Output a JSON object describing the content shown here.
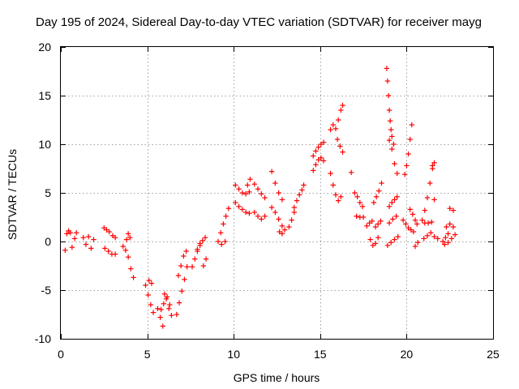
{
  "chart_data": {
    "type": "scatter",
    "title": "Day 195 of 2024, Sidereal Day-to-day VTEC variation (SDTVAR) for receiver mayg",
    "xlabel": "GPS time / hours",
    "ylabel": "SDTVAR / TECUs",
    "xlim": [
      0,
      25
    ],
    "ylim": [
      -10,
      20
    ],
    "x_ticks": [
      0,
      5,
      10,
      15,
      20,
      25
    ],
    "y_ticks": [
      -10,
      -5,
      0,
      5,
      10,
      15,
      20
    ],
    "x_tick_labels": [
      "0",
      "5",
      "10",
      "15",
      "20",
      "25"
    ],
    "y_tick_labels": [
      "-10",
      "-5",
      "0",
      "5",
      "10",
      "15",
      "20"
    ],
    "grid": true,
    "marker": "plus",
    "color": "#ff0000",
    "series": [
      {
        "name": "SDTVAR",
        "segments": [
          {
            "x": [
              0.25,
              0.35,
              0.45,
              0.55,
              0.65,
              0.8,
              0.9
            ],
            "y": [
              -0.9,
              0.8,
              1.1,
              0.9,
              -0.6,
              0.3,
              0.9
            ]
          },
          {
            "x": [
              1.3,
              1.45,
              1.6,
              1.75,
              1.9
            ],
            "y": [
              0.4,
              -0.3,
              0.5,
              -0.7,
              0.2
            ]
          },
          {
            "x": [
              2.5,
              2.65,
              2.8,
              3.0,
              3.15
            ],
            "y": [
              1.4,
              1.2,
              1.0,
              0.6,
              0.4
            ]
          },
          {
            "x": [
              2.55,
              2.75,
              2.95,
              3.15
            ],
            "y": [
              -0.7,
              -1.0,
              -1.3,
              -1.3
            ]
          },
          {
            "x": [
              3.6,
              3.75,
              3.9,
              4.05,
              4.2
            ],
            "y": [
              -0.5,
              -0.9,
              -1.6,
              -2.8,
              -3.7
            ]
          },
          {
            "x": [
              3.8,
              3.9,
              4.0
            ],
            "y": [
              0.2,
              0.8,
              0.4
            ]
          },
          {
            "x": [
              4.9,
              5.05,
              5.2,
              5.35
            ],
            "y": [
              -4.5,
              -5.5,
              -6.5,
              -7.3
            ]
          },
          {
            "x": [
              5.1,
              5.25
            ],
            "y": [
              -4.0,
              -4.3
            ]
          },
          {
            "x": [
              5.6,
              5.75,
              5.9
            ],
            "y": [
              -6.9,
              -7.8,
              -8.7
            ]
          },
          {
            "x": [
              5.8,
              5.95,
              6.1,
              6.25,
              6.4
            ],
            "y": [
              -7.0,
              -6.4,
              -5.9,
              -6.9,
              -7.6
            ]
          },
          {
            "x": [
              6.0,
              6.15,
              6.3
            ],
            "y": [
              -5.4,
              -5.7,
              -6.5
            ]
          },
          {
            "x": [
              6.7,
              6.85,
              7.0,
              7.15,
              7.3
            ],
            "y": [
              -7.5,
              -6.3,
              -5.1,
              -3.9,
              -2.6
            ]
          },
          {
            "x": [
              6.8,
              6.95,
              7.1,
              7.25
            ],
            "y": [
              -3.5,
              -2.5,
              -1.5,
              -1.0
            ]
          },
          {
            "x": [
              7.6,
              7.75,
              7.9,
              8.05
            ],
            "y": [
              -2.6,
              -1.8,
              -1.0,
              -0.4
            ]
          },
          {
            "x": [
              7.9,
              8.05,
              8.2,
              8.35
            ],
            "y": [
              -0.8,
              -0.2,
              0.1,
              0.4
            ]
          },
          {
            "x": [
              8.25,
              8.4
            ],
            "y": [
              -2.5,
              -1.8
            ]
          },
          {
            "x": [
              9.1,
              9.25,
              9.4,
              9.55,
              9.7
            ],
            "y": [
              0.0,
              0.9,
              1.8,
              2.6,
              3.4
            ]
          },
          {
            "x": [
              9.3,
              9.5
            ],
            "y": [
              -0.3,
              0.0
            ]
          },
          {
            "x": [
              10.1,
              10.3,
              10.5,
              10.7,
              10.9
            ],
            "y": [
              4.0,
              3.6,
              3.3,
              3.0,
              2.9
            ]
          },
          {
            "x": [
              10.1,
              10.3,
              10.5,
              10.7,
              10.9
            ],
            "y": [
              5.8,
              5.4,
              5.0,
              4.9,
              5.1
            ]
          },
          {
            "x": [
              10.8,
              10.95
            ],
            "y": [
              5.8,
              6.4
            ]
          },
          {
            "x": [
              11.2,
              11.4,
              11.6,
              11.8
            ],
            "y": [
              5.9,
              5.4,
              4.9,
              4.5
            ]
          },
          {
            "x": [
              11.2,
              11.4,
              11.6,
              11.8
            ],
            "y": [
              3.0,
              2.6,
              2.3,
              2.6
            ]
          },
          {
            "x": [
              12.2,
              12.4,
              12.6,
              12.8
            ],
            "y": [
              7.2,
              6.0,
              5.0,
              4.3
            ]
          },
          {
            "x": [
              12.2,
              12.4,
              12.6,
              12.8
            ],
            "y": [
              3.5,
              3.0,
              2.3,
              1.6
            ]
          },
          {
            "x": [
              12.65,
              12.8,
              12.95
            ],
            "y": [
              1.0,
              0.8,
              1.2
            ]
          },
          {
            "x": [
              13.2,
              13.35,
              13.5
            ],
            "y": [
              1.5,
              2.2,
              3.0
            ]
          },
          {
            "x": [
              13.5,
              13.65,
              13.8,
              13.95,
              14.05
            ],
            "y": [
              3.5,
              4.2,
              4.8,
              5.3,
              5.8
            ]
          },
          {
            "x": [
              14.6,
              14.75,
              14.9,
              15.05,
              15.2
            ],
            "y": [
              8.8,
              9.3,
              9.7,
              10.0,
              10.2
            ]
          },
          {
            "x": [
              14.6,
              14.75,
              14.9,
              15.05,
              15.2
            ],
            "y": [
              7.3,
              7.9,
              8.4,
              8.6,
              8.3
            ]
          },
          {
            "x": [
              15.6,
              15.75,
              15.9,
              16.05,
              16.2,
              16.3
            ],
            "y": [
              11.5,
              12.0,
              11.6,
              12.5,
              13.5,
              14.0
            ]
          },
          {
            "x": [
              15.6,
              15.75,
              15.9,
              16.05,
              16.2
            ],
            "y": [
              7.0,
              5.8,
              4.8,
              4.2,
              4.6
            ]
          },
          {
            "x": [
              16.0,
              16.15,
              16.3
            ],
            "y": [
              10.5,
              9.8,
              9.2
            ]
          },
          {
            "x": [
              16.8
            ],
            "y": [
              7.1
            ]
          },
          {
            "x": [
              17.0,
              17.15,
              17.3,
              17.45
            ],
            "y": [
              5.0,
              4.6,
              4.0,
              3.6
            ]
          },
          {
            "x": [
              17.1,
              17.3,
              17.5
            ],
            "y": [
              2.6,
              2.5,
              2.5
            ]
          },
          {
            "x": [
              17.7,
              17.85,
              18.0
            ],
            "y": [
              1.6,
              1.9,
              2.1
            ]
          },
          {
            "x": [
              17.9,
              18.05,
              18.2,
              18.35
            ],
            "y": [
              0.2,
              -0.4,
              -0.2,
              0.4
            ]
          },
          {
            "x": [
              18.1,
              18.25,
              18.4,
              18.55
            ],
            "y": [
              4.0,
              4.6,
              5.2,
              6.0
            ]
          },
          {
            "x": [
              18.2,
              18.35,
              18.5
            ],
            "y": [
              1.5,
              1.8,
              2.1
            ]
          },
          {
            "x": [
              18.85,
              18.9,
              18.95,
              19.0,
              19.05,
              19.1,
              19.15,
              19.25
            ],
            "y": [
              17.8,
              16.5,
              15.0,
              13.5,
              12.4,
              11.5,
              10.8,
              10.0
            ]
          },
          {
            "x": [
              19.0,
              19.15,
              19.3,
              19.45
            ],
            "y": [
              10.4,
              9.5,
              8.0,
              7.0
            ]
          },
          {
            "x": [
              19.0,
              19.15,
              19.3,
              19.45
            ],
            "y": [
              3.6,
              4.0,
              4.3,
              4.6
            ]
          },
          {
            "x": [
              19.0,
              19.2,
              19.4
            ],
            "y": [
              1.9,
              2.3,
              2.6
            ]
          },
          {
            "x": [
              18.9,
              19.1,
              19.3,
              19.5
            ],
            "y": [
              -0.4,
              -0.1,
              0.2,
              0.5
            ]
          },
          {
            "x": [
              19.9,
              20.0,
              20.1,
              20.2,
              20.3
            ],
            "y": [
              6.9,
              7.8,
              9.0,
              10.5,
              12.0
            ]
          },
          {
            "x": [
              19.8,
              19.95,
              20.1,
              20.25,
              20.4
            ],
            "y": [
              2.2,
              1.8,
              1.4,
              1.2,
              1.0
            ]
          },
          {
            "x": [
              20.2,
              20.35,
              20.5,
              20.6
            ],
            "y": [
              3.3,
              2.8,
              2.2,
              1.8
            ]
          },
          {
            "x": [
              20.5,
              20.65
            ],
            "y": [
              -0.5,
              -0.1
            ]
          },
          {
            "x": [
              20.9,
              21.05,
              21.2,
              21.35,
              21.5
            ],
            "y": [
              2.2,
              3.2,
              4.5,
              6.0,
              7.5
            ]
          },
          {
            "x": [
              21.5,
              21.6
            ],
            "y": [
              7.8,
              8.1
            ]
          },
          {
            "x": [
              21.05,
              21.25,
              21.45
            ],
            "y": [
              1.9,
              1.9,
              2.0
            ]
          },
          {
            "x": [
              21.0,
              21.2,
              21.4
            ],
            "y": [
              0.3,
              0.6,
              0.9
            ]
          },
          {
            "x": [
              21.6
            ],
            "y": [
              4.3
            ]
          },
          {
            "x": [
              21.6,
              21.8
            ],
            "y": [
              0.5,
              0.3
            ]
          },
          {
            "x": [
              22.1,
              22.25,
              22.4
            ],
            "y": [
              0.0,
              0.4,
              0.8
            ]
          },
          {
            "x": [
              22.3,
              22.5,
              22.7
            ],
            "y": [
              1.5,
              1.8,
              1.5
            ]
          },
          {
            "x": [
              22.5,
              22.7
            ],
            "y": [
              3.4,
              3.2
            ]
          },
          {
            "x": [
              22.2,
              22.4,
              22.6,
              22.8
            ],
            "y": [
              -0.3,
              -0.1,
              0.3,
              0.7
            ]
          }
        ]
      }
    ]
  }
}
